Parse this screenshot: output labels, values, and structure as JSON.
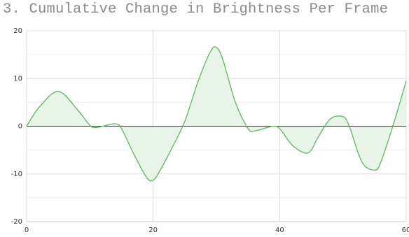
{
  "chart_data": {
    "type": "area",
    "title": "3. Cumulative Change in Brightness Per Frame",
    "xlabel": "",
    "ylabel": "",
    "xlim": [
      0,
      60
    ],
    "ylim": [
      -20,
      20
    ],
    "x_ticks": [
      0,
      20,
      40,
      60
    ],
    "y_ticks": [
      -20,
      -10,
      0,
      10,
      20
    ],
    "x_tick_labels": [
      "0",
      "20",
      "40",
      "60"
    ],
    "y_tick_labels": [
      "-20",
      "-10",
      "0",
      "10",
      "20"
    ],
    "grid": true,
    "legend": "none",
    "series": [
      {
        "x": [
          0,
          2,
          5,
          8,
          10,
          11,
          12,
          14,
          15,
          17,
          19,
          20,
          21,
          23,
          25,
          27,
          29,
          30,
          31,
          33,
          35,
          36,
          38,
          39,
          40,
          42,
          44,
          45,
          46,
          48,
          50,
          51,
          53,
          55,
          56,
          58,
          60
        ],
        "y": [
          0,
          4,
          7.3,
          3.5,
          0.2,
          -0.3,
          0,
          0.5,
          -0.5,
          -6,
          -10.8,
          -11.3,
          -9.5,
          -4.5,
          1,
          9,
          15.5,
          16.5,
          14,
          5,
          -0.5,
          -1,
          -0.3,
          0,
          -0.5,
          -4,
          -5.6,
          -5,
          -2.5,
          1.5,
          2,
          0,
          -7.5,
          -9.2,
          -7.5,
          0.5,
          9.5
        ]
      }
    ],
    "colors": {
      "line": "#5cb85c",
      "fill": "#e7f3e7",
      "grid": "#dddddd",
      "zero_line": "#333333",
      "axis": "#cccccc"
    }
  }
}
